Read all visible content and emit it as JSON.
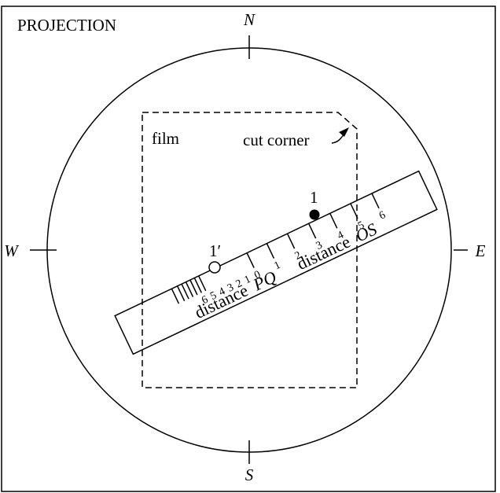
{
  "title": "PROJECTION",
  "compass": {
    "north": "N",
    "south": "S",
    "east": "E",
    "west": "W"
  },
  "film": {
    "label": "film",
    "cut_corner_label": "cut corner"
  },
  "points": {
    "point_1": "1",
    "point_1_prime": "1′"
  },
  "ruler": {
    "os_label_prefix": "distance",
    "os_label_italic": "OS",
    "pq_label_prefix": "distance",
    "pq_label_italic": "PQ",
    "os_ticks": [
      "0",
      "1",
      "2",
      "3",
      "4",
      "5",
      "6"
    ],
    "pq_ticks": [
      "1",
      "2",
      "3",
      "4",
      "5",
      "6"
    ]
  }
}
